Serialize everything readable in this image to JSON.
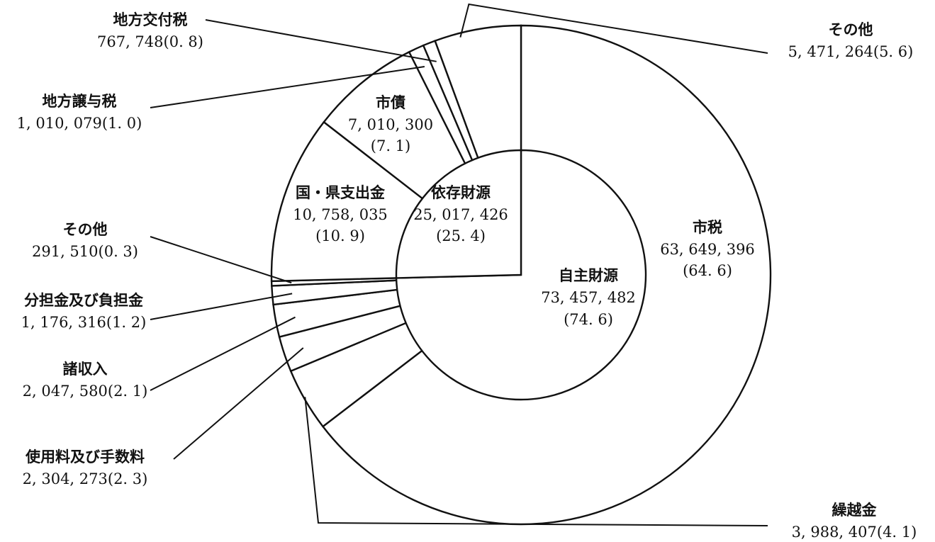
{
  "chart_data": {
    "type": "pie",
    "donut": true,
    "outer_ring": [
      {
        "name": "市税",
        "value": "63, 649, 396",
        "pct": "(64. 6)",
        "share": 64.6
      },
      {
        "name": "繰越金",
        "value": "3, 988, 407",
        "pct": "(4. 1)",
        "share": 4.1
      },
      {
        "name": "使用料及び手数料",
        "value": "2, 304, 273",
        "pct": "(2. 3)",
        "share": 2.3
      },
      {
        "name": "諸収入",
        "value": "2, 047, 580",
        "pct": "(2. 1)",
        "share": 2.1
      },
      {
        "name": "分担金及び負担金",
        "value": "1, 176, 316",
        "pct": "(1. 2)",
        "share": 1.2
      },
      {
        "name": "その他",
        "value": "291, 510",
        "pct": "(0. 3)",
        "share": 0.3
      },
      {
        "name": "国・県支出金",
        "value": "10, 758, 035",
        "pct": "(10. 9)",
        "share": 10.9
      },
      {
        "name": "市債",
        "value": "7, 010, 300",
        "pct": "(7. 1)",
        "share": 7.1
      },
      {
        "name": "地方譲与税",
        "value": "1, 010, 079",
        "pct": "(1. 0)",
        "share": 1.0
      },
      {
        "name": "地方交付税",
        "value": "767, 748",
        "pct": "(0. 8)",
        "share": 0.8
      },
      {
        "name": "その他",
        "value": "5, 471, 264",
        "pct": "(5. 6)",
        "share": 5.6
      }
    ],
    "inner_ring": [
      {
        "name": "自主財源",
        "value": "73, 457, 482",
        "pct": "(74. 6)",
        "share": 74.6
      },
      {
        "name": "依存財源",
        "value": "25, 017, 426",
        "pct": "(25. 4)",
        "share": 25.4
      }
    ]
  }
}
